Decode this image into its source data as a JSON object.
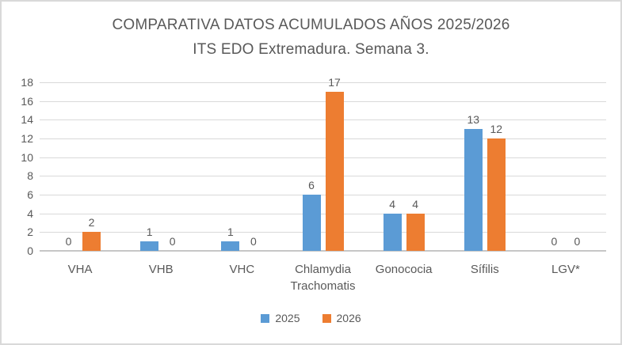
{
  "title": {
    "line1": "COMPARATIVA DATOS ACUMULADOS AÑOS 2025/2026",
    "line2": "ITS EDO Extremadura. Semana 3."
  },
  "chart_data": {
    "type": "bar",
    "title": "COMPARATIVA DATOS ACUMULADOS AÑOS 2025/2026 ITS EDO Extremadura. Semana 3.",
    "categories": [
      "VHA",
      "VHB",
      "VHC",
      "Chlamydia Trachomatis",
      "Gonococia",
      "Sífilis",
      "LGV*"
    ],
    "series": [
      {
        "name": "2025",
        "color": "#5B9BD5",
        "values": [
          0,
          1,
          1,
          6,
          4,
          13,
          0
        ]
      },
      {
        "name": "2026",
        "color": "#ED7D31",
        "values": [
          2,
          0,
          0,
          17,
          4,
          12,
          0
        ]
      }
    ],
    "ylim": [
      0,
      18
    ],
    "ytick_step": 2,
    "yticks": [
      0,
      2,
      4,
      6,
      8,
      10,
      12,
      14,
      16,
      18
    ],
    "grid": true,
    "data_labels": true,
    "legend_position": "bottom",
    "xlabel": "",
    "ylabel": ""
  },
  "colors": {
    "text": "#595959",
    "gridline": "#d9d9d9",
    "axis_line": "#c6c6c6",
    "border": "#d9d9d9",
    "background": "#ffffff",
    "series_2025": "#5B9BD5",
    "series_2026": "#ED7D31"
  }
}
